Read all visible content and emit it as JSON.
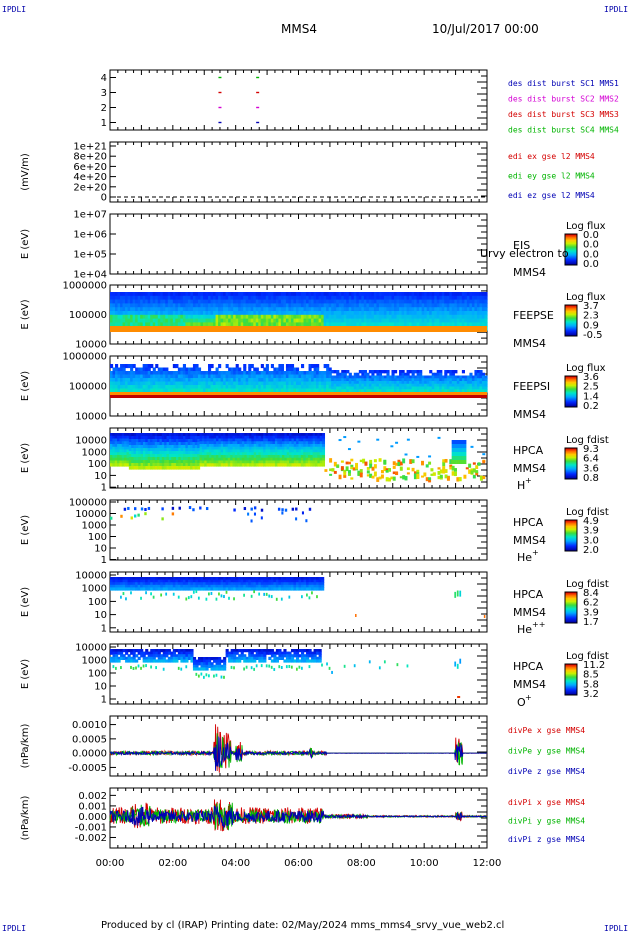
{
  "header": {
    "corner_label": "IPDLI",
    "spacecraft": "MMS4",
    "date": "10/Jul/2017 00:00"
  },
  "footer": {
    "text": "Produced by cl (IRAP)   Printing date: 02/May/2024   mms_mms4_srvy_vue_web2.cl"
  },
  "colors": {
    "red": "#d40000",
    "green": "#00b400",
    "blue": "#0000b4",
    "magenta": "#d400d4",
    "black": "#000000"
  },
  "time_axis": {
    "range_hours": [
      0,
      12
    ],
    "tick_labels": [
      "00:00",
      "02:00",
      "04:00",
      "06:00",
      "08:00",
      "10:00",
      "12:00"
    ]
  },
  "chart_data": [
    {
      "id": "coverage",
      "type": "scatter",
      "yticks": [
        "1",
        "2",
        "3",
        "4"
      ],
      "ylim": [
        0.5,
        4.5
      ],
      "legend": [
        "des dist burst SC1 MMS1",
        "des dist burst SC2 MMS2",
        "des dist burst SC3 MMS3",
        "des dist burst SC4 MMS4"
      ],
      "legend_colors": [
        "#0000b4",
        "#d400d4",
        "#d40000",
        "#00b400"
      ],
      "marks": [
        {
          "x": 3.5,
          "y": 4,
          "color": "#00b400"
        },
        {
          "x": 4.7,
          "y": 4,
          "color": "#00b400"
        },
        {
          "x": 3.5,
          "y": 3,
          "color": "#d40000"
        },
        {
          "x": 4.7,
          "y": 3,
          "color": "#d40000"
        },
        {
          "x": 3.5,
          "y": 2,
          "color": "#d400d4"
        },
        {
          "x": 4.7,
          "y": 2,
          "color": "#d400d4"
        },
        {
          "x": 3.5,
          "y": 1,
          "color": "#0000b4"
        },
        {
          "x": 4.7,
          "y": 1,
          "color": "#0000b4"
        }
      ]
    },
    {
      "id": "edi",
      "type": "line",
      "ylabel": "(mV/m)",
      "yticks": [
        "1e+21",
        "8e+20",
        "6e+20",
        "4e+20",
        "2e+20",
        "0"
      ],
      "legend": [
        "edi ex gse l2 MMS4",
        "edi ey gse l2 MMS4",
        "edi ez gse l2 MMS4"
      ],
      "legend_colors": [
        "#d40000",
        "#00b400",
        "#0000b4"
      ]
    },
    {
      "id": "eis",
      "type": "heatmap",
      "ylabel": "E (eV)",
      "yticks": [
        "1e+07",
        "1e+06",
        "1e+05",
        "1e+04"
      ],
      "side_text": [
        "EIS",
        "MMS4"
      ],
      "overlay_text": "Urvy electron to",
      "colorbar": {
        "title": "Log flux",
        "labels": [
          "0.0",
          "0.0",
          "0.0",
          "0.0"
        ]
      }
    },
    {
      "id": "feepse",
      "type": "heatmap",
      "ylabel": "E (eV)",
      "yticks": [
        "1000000",
        "100000",
        "10000"
      ],
      "side_text": [
        "FEEPSE",
        "MMS4"
      ],
      "colorbar": {
        "title": "Log flux",
        "labels": [
          "3.7",
          "2.3",
          "0.9",
          "-0.5"
        ]
      }
    },
    {
      "id": "feepsi",
      "type": "heatmap",
      "ylabel": "E (eV)",
      "yticks": [
        "1000000",
        "100000",
        "10000"
      ],
      "side_text": [
        "FEEPSI",
        "MMS4"
      ],
      "colorbar": {
        "title": "Log flux",
        "labels": [
          "3.6",
          "2.5",
          "1.4",
          "0.2"
        ]
      }
    },
    {
      "id": "hpca_h",
      "type": "heatmap",
      "ylabel": "E (eV)",
      "yticks": [
        "10000",
        "1000",
        "100",
        "10",
        "1"
      ],
      "side_text": [
        "HPCA",
        "MMS4",
        "H",
        "+"
      ],
      "colorbar": {
        "title": "Log fdist",
        "labels": [
          "9.3",
          "6.4",
          "3.6",
          "0.8"
        ]
      }
    },
    {
      "id": "hpca_he1",
      "type": "heatmap",
      "ylabel": "E (eV)",
      "yticks": [
        "100000",
        "10000",
        "1000",
        "100",
        "10",
        "1"
      ],
      "side_text": [
        "HPCA",
        "MMS4",
        "He",
        "+"
      ],
      "colorbar": {
        "title": "Log fdist",
        "labels": [
          "4.9",
          "3.9",
          "3.0",
          "2.0"
        ]
      }
    },
    {
      "id": "hpca_he2",
      "type": "heatmap",
      "ylabel": "E (eV)",
      "yticks": [
        "10000",
        "1000",
        "100",
        "10",
        "1"
      ],
      "side_text": [
        "HPCA",
        "MMS4",
        "He",
        "++"
      ],
      "colorbar": {
        "title": "Log fdist",
        "labels": [
          "8.4",
          "6.2",
          "3.9",
          "1.7"
        ]
      }
    },
    {
      "id": "hpca_o",
      "type": "heatmap",
      "ylabel": "E (eV)",
      "yticks": [
        "10000",
        "1000",
        "100",
        "10",
        "1"
      ],
      "side_text": [
        "HPCA",
        "MMS4",
        "O",
        "+"
      ],
      "colorbar": {
        "title": "Log fdist",
        "labels": [
          "11.2",
          "8.5",
          "5.8",
          "3.2"
        ]
      }
    },
    {
      "id": "divpe",
      "type": "line",
      "ylabel": "(nPa/km)",
      "yticks": [
        "0.0010",
        "0.0005",
        "0.0000",
        "-0.0005"
      ],
      "ylim": [
        -0.0008,
        0.0013
      ],
      "legend": [
        "divPe x gse MMS4",
        "divPe y gse MMS4",
        "divPe z gse MMS4"
      ],
      "legend_colors": [
        "#d40000",
        "#00b400",
        "#0000b4"
      ]
    },
    {
      "id": "divpi",
      "type": "line",
      "ylabel": "(nPa/km)",
      "yticks": [
        "0.002",
        "0.001",
        "0.000",
        "-0.001",
        "-0.002"
      ],
      "ylim": [
        -0.003,
        0.0027
      ],
      "legend": [
        "divPi x gse MMS4",
        "divPi y gse MMS4",
        "divPi z gse MMS4"
      ],
      "legend_colors": [
        "#d40000",
        "#00b400",
        "#0000b4"
      ]
    }
  ]
}
